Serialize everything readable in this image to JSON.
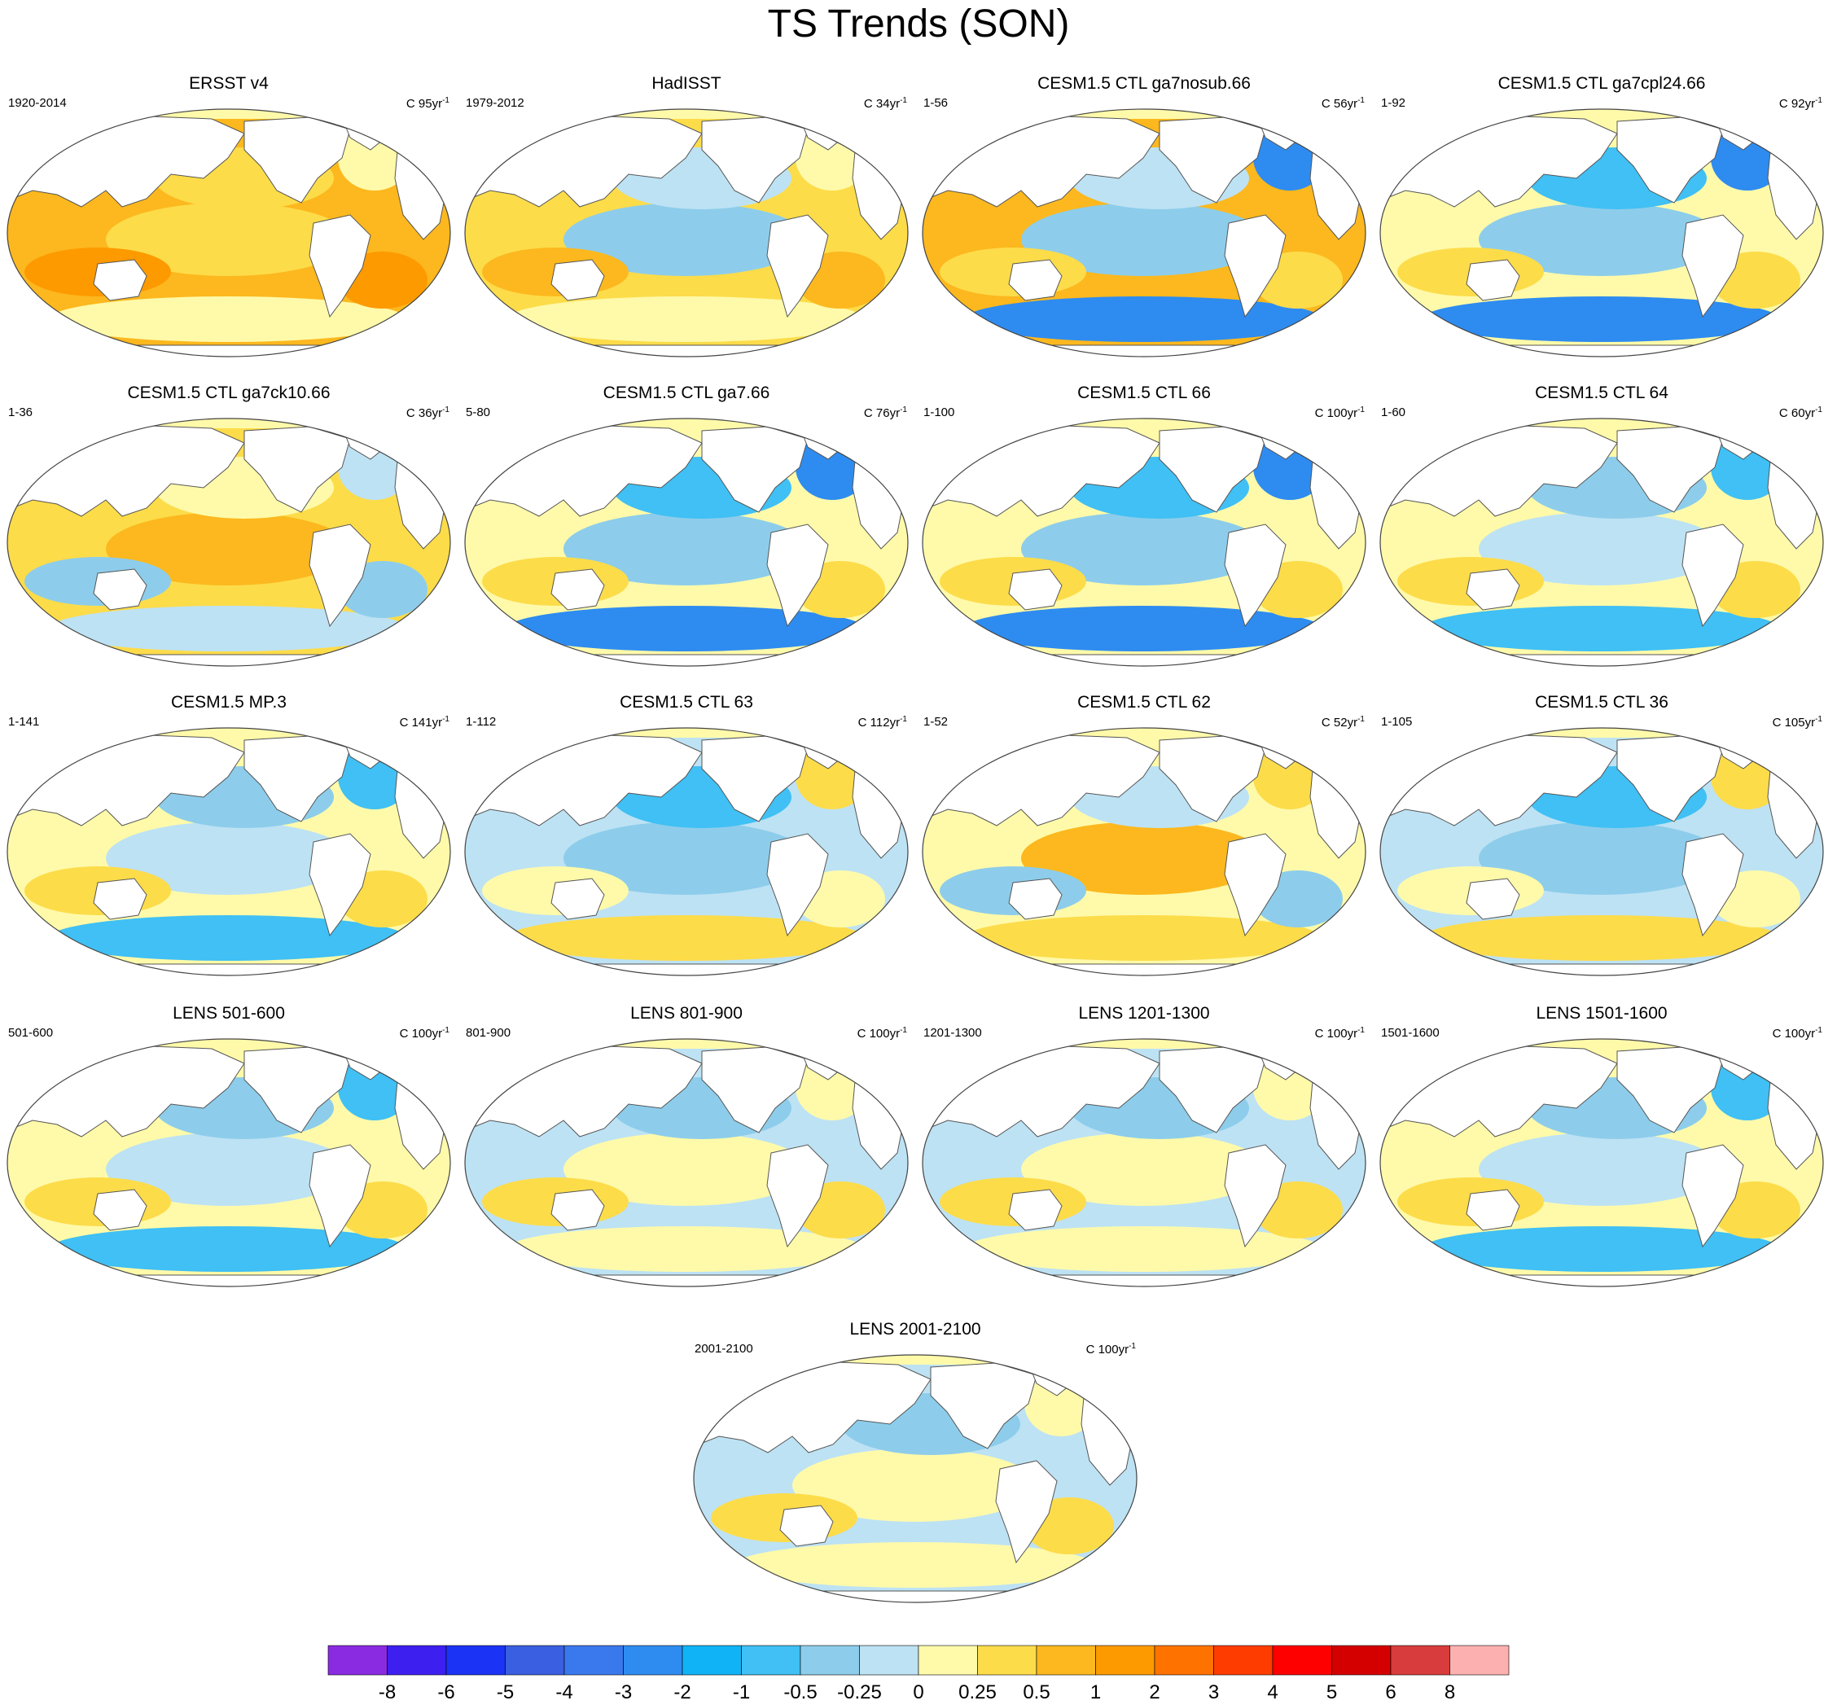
{
  "title": "TS Trends (SON)",
  "units_prefix": "C ",
  "units_suffix": "yr",
  "units_exp": "-1",
  "panels": [
    {
      "title": "ERSST v4",
      "period": "1920-2014",
      "length": "95",
      "style": "warm"
    },
    {
      "title": "HadISST",
      "period": "1979-2012",
      "length": "34",
      "style": "enso_cool"
    },
    {
      "title": "CESM1.5 CTL ga7nosub.66",
      "period": "1-56",
      "length": "56",
      "style": "warm_natl_cold"
    },
    {
      "title": "CESM1.5 CTL ga7cpl24.66",
      "period": "1-92",
      "length": "92",
      "style": "north_cool"
    },
    {
      "title": "CESM1.5 CTL ga7ck10.66",
      "period": "1-36",
      "length": "36",
      "style": "mixed_warm"
    },
    {
      "title": "CESM1.5 CTL ga7.66",
      "period": "5-80",
      "length": "76",
      "style": "north_cool"
    },
    {
      "title": "CESM1.5 CTL 66",
      "period": "1-100",
      "length": "100",
      "style": "north_cool"
    },
    {
      "title": "CESM1.5 CTL 64",
      "period": "1-60",
      "length": "60",
      "style": "mixed"
    },
    {
      "title": "CESM1.5 MP.3",
      "period": "1-141",
      "length": "141",
      "style": "mixed"
    },
    {
      "title": "CESM1.5 CTL 63",
      "period": "1-112",
      "length": "112",
      "style": "cool"
    },
    {
      "title": "CESM1.5 CTL 62",
      "period": "1-52",
      "length": "52",
      "style": "pdo"
    },
    {
      "title": "CESM1.5 CTL 36",
      "period": "1-105",
      "length": "105",
      "style": "cool"
    },
    {
      "title": "LENS 501-600",
      "period": "501-600",
      "length": "100",
      "style": "mixed"
    },
    {
      "title": "LENS 801-900",
      "period": "801-900",
      "length": "100",
      "style": "cool_light"
    },
    {
      "title": "LENS 1201-1300",
      "period": "1201-1300",
      "length": "100",
      "style": "cool_light"
    },
    {
      "title": "LENS 1501-1600",
      "period": "1501-1600",
      "length": "100",
      "style": "mixed"
    },
    {
      "title": "LENS 2001-2100",
      "period": "2001-2100",
      "length": "100",
      "style": "cool_light"
    }
  ],
  "colorbar": {
    "colors": [
      "#8a2be2",
      "#3d1ff0",
      "#1a33f5",
      "#3a5fe0",
      "#3a78ee",
      "#2e8cf0",
      "#10b4f6",
      "#40c0f4",
      "#8dcdeb",
      "#bde2f4",
      "#fffaaa",
      "#fddc4a",
      "#fcb81e",
      "#fd9a00",
      "#fe7300",
      "#ff3c00",
      "#fe0000",
      "#d40000",
      "#d83c3c",
      "#fdb0b0"
    ],
    "labels": [
      "-8",
      "-6",
      "-5",
      "-4",
      "-3",
      "-2",
      "-1",
      "-0.5",
      "-0.25",
      "0",
      "0.25",
      "0.5",
      "1",
      "2",
      "3",
      "4",
      "5",
      "6",
      "8"
    ]
  }
}
